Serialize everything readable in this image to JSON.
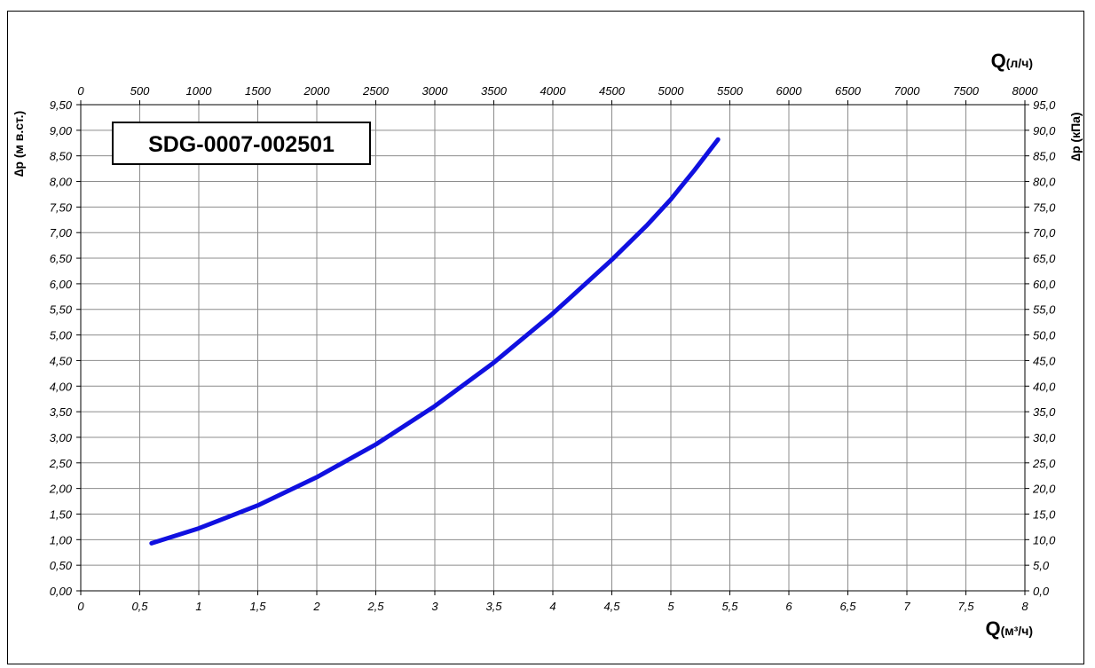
{
  "chart_data": {
    "type": "line",
    "label_box": "SDG-0007-002501",
    "x_bottom": {
      "title": "Q",
      "unit": "(м³/ч)",
      "ticks": [
        "0",
        "0,5",
        "1",
        "1,5",
        "2",
        "2,5",
        "3",
        "3,5",
        "4",
        "4,5",
        "5",
        "5,5",
        "6",
        "6,5",
        "7",
        "7,5",
        "8"
      ],
      "range": [
        0,
        8
      ]
    },
    "x_top": {
      "title": "Q",
      "unit": "(л/ч)",
      "ticks": [
        "0",
        "500",
        "1000",
        "1500",
        "2000",
        "2500",
        "3000",
        "3500",
        "4000",
        "4500",
        "5000",
        "5500",
        "6000",
        "6500",
        "7000",
        "7500",
        "8000"
      ],
      "range": [
        0,
        8000
      ]
    },
    "y_left": {
      "title": "∆p (м в.ст.)",
      "ticks": [
        "0,00",
        "0,50",
        "1,00",
        "1,50",
        "2,00",
        "2,50",
        "3,00",
        "3,50",
        "4,00",
        "4,50",
        "5,00",
        "5,50",
        "6,00",
        "6,50",
        "7,00",
        "7,50",
        "8,00",
        "8,50",
        "9,00",
        "9,50"
      ],
      "range": [
        0,
        9.5
      ]
    },
    "y_right": {
      "title": "∆p (кПа)",
      "ticks": [
        "0,0",
        "5,0",
        "10,0",
        "15,0",
        "20,0",
        "25,0",
        "30,0",
        "35,0",
        "40,0",
        "45,0",
        "50,0",
        "55,0",
        "60,0",
        "65,0",
        "70,0",
        "75,0",
        "80,0",
        "85,0",
        "90,0",
        "95,0"
      ],
      "range": [
        0,
        95
      ]
    },
    "grid": true,
    "series": [
      {
        "color": "#1010e0",
        "x": [
          0.6,
          1.0,
          1.5,
          2.0,
          2.5,
          3.0,
          3.5,
          4.0,
          4.5,
          4.8,
          5.0,
          5.2,
          5.4
        ],
        "y": [
          0.93,
          1.22,
          1.67,
          2.22,
          2.86,
          3.61,
          4.46,
          5.42,
          6.47,
          7.15,
          7.65,
          8.22,
          8.82
        ]
      }
    ]
  }
}
